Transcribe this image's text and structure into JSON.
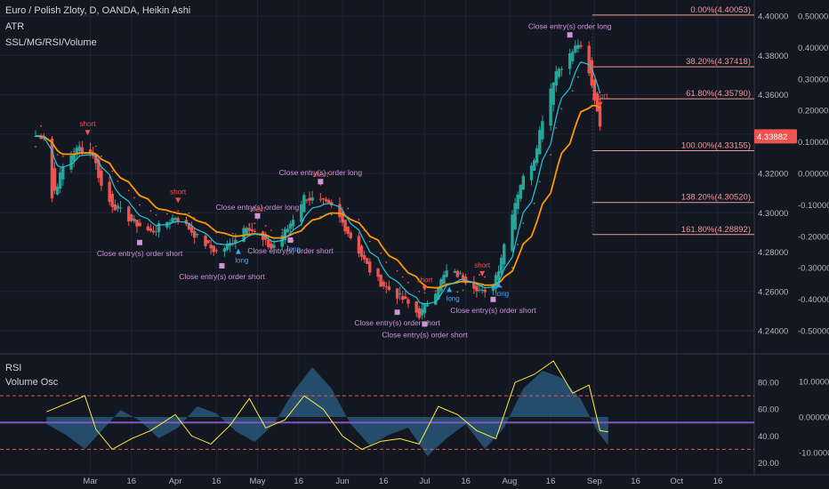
{
  "header": {
    "symbol_line": "Euro / Polish Zloty, D, OANDA, Heikin Ashi",
    "ind1": "ATR",
    "ind2": "SSL/MG/RSI/Volume",
    "rsi_label": "RSI",
    "vol_label": "Volume Osc"
  },
  "colors": {
    "background": "#131722",
    "bull": "#26a69a",
    "bear": "#ef5350",
    "ma_orange": "#ff9800",
    "ma_cyan": "#26c6da",
    "rsi": "#ffeb3b",
    "volume_fill": "#2e5f86",
    "fib": "#ef9a9a",
    "signal": "#ce93d8",
    "midline": "#7e57c2"
  },
  "chart_data": [
    {
      "type": "candlestick",
      "style": "heikin-ashi",
      "title": "Euro / Polish Zloty, D, OANDA, Heikin Ashi",
      "x_ticks": [
        "Mar",
        "16",
        "Apr",
        "16",
        "May",
        "16",
        "Jun",
        "16",
        "Jul",
        "16",
        "Aug",
        "16",
        "Sep",
        "16",
        "Oct",
        "16"
      ],
      "left_axis": {
        "ticks": [
          "4.40000",
          "4.38000",
          "4.36000",
          "4.34000",
          "4.32000",
          "4.30000",
          "4.28000",
          "4.26000",
          "4.24000"
        ],
        "range": [
          4.235,
          4.405
        ]
      },
      "right_axis": {
        "ticks": [
          "0.50000",
          "0.40000",
          "0.30000",
          "0.20000",
          "0.10000",
          "0.00000",
          "-0.10000",
          "-0.20000",
          "-0.30000",
          "-0.40000",
          "-0.50000"
        ]
      },
      "last_price": "4.33882",
      "price_path": [
        {
          "x": "Feb 13",
          "y": 4.3
        },
        {
          "x": "Feb 17",
          "y": 4.315
        },
        {
          "x": "Feb 20",
          "y": 4.327
        },
        {
          "x": "Feb 25",
          "y": 4.333
        },
        {
          "x": "Mar 2",
          "y": 4.33
        },
        {
          "x": "Mar 6",
          "y": 4.308
        },
        {
          "x": "Mar 10",
          "y": 4.303
        },
        {
          "x": "Mar 16",
          "y": 4.296
        },
        {
          "x": "Mar 23",
          "y": 4.29
        },
        {
          "x": "Apr 1",
          "y": 4.298
        },
        {
          "x": "Apr 6",
          "y": 4.292
        },
        {
          "x": "Apr 10",
          "y": 4.286
        },
        {
          "x": "Apr 16",
          "y": 4.28
        },
        {
          "x": "Apr 21",
          "y": 4.284
        },
        {
          "x": "Apr 27",
          "y": 4.294
        },
        {
          "x": "May 1",
          "y": 4.288
        },
        {
          "x": "May 6",
          "y": 4.282
        },
        {
          "x": "May 12",
          "y": 4.292
        },
        {
          "x": "May 18",
          "y": 4.308
        },
        {
          "x": "May 25",
          "y": 4.305
        },
        {
          "x": "May 29",
          "y": 4.302
        },
        {
          "x": "Jun 3",
          "y": 4.29
        },
        {
          "x": "Jun 8",
          "y": 4.278
        },
        {
          "x": "Jun 12",
          "y": 4.268
        },
        {
          "x": "Jun 17",
          "y": 4.262
        },
        {
          "x": "Jun 23",
          "y": 4.256
        },
        {
          "x": "Jun 29",
          "y": 4.248
        },
        {
          "x": "Jul 3",
          "y": 4.256
        },
        {
          "x": "Jul 9",
          "y": 4.27
        },
        {
          "x": "Jul 14",
          "y": 4.268
        },
        {
          "x": "Jul 20",
          "y": 4.262
        },
        {
          "x": "Jul 24",
          "y": 4.257
        },
        {
          "x": "Jul 28",
          "y": 4.272
        },
        {
          "x": "Aug 1",
          "y": 4.296
        },
        {
          "x": "Aug 5",
          "y": 4.315
        },
        {
          "x": "Aug 10",
          "y": 4.328
        },
        {
          "x": "Aug 14",
          "y": 4.355
        },
        {
          "x": "Aug 18",
          "y": 4.372
        },
        {
          "x": "Aug 22",
          "y": 4.378
        },
        {
          "x": "Aug 26",
          "y": 4.386
        },
        {
          "x": "Aug 29",
          "y": 4.376
        },
        {
          "x": "Sep 2",
          "y": 4.352
        },
        {
          "x": "Sep 4",
          "y": 4.339
        }
      ],
      "fibonacci": [
        {
          "label": "0.00%(4.40053)",
          "price": 4.40053
        },
        {
          "label": "38.20%(4.37418)",
          "price": 4.37418
        },
        {
          "label": "61.80%(4.35790)",
          "price": 4.3579
        },
        {
          "label": "100.00%(4.33155)",
          "price": 4.33155
        },
        {
          "label": "138.20%(4.30520)",
          "price": 4.3052
        },
        {
          "label": "161.80%(4.28892)",
          "price": 4.28892
        }
      ],
      "annotations": [
        {
          "text": "short",
          "x": "Feb 28"
        },
        {
          "text": "short",
          "x": "Apr 2"
        },
        {
          "text": "short",
          "x": "May 1"
        },
        {
          "text": "short",
          "x": "May 24"
        },
        {
          "text": "short",
          "x": "Jul 1"
        },
        {
          "text": "short",
          "x": "Jul 22"
        },
        {
          "text": "short",
          "x": "Sep 3"
        },
        {
          "text": "long",
          "x": "Apr 24"
        },
        {
          "text": "long",
          "x": "May 13"
        },
        {
          "text": "long",
          "x": "Jul 10"
        },
        {
          "text": "long",
          "x": "Jul 28"
        },
        {
          "text": "Close entry(s) order short",
          "x": "Mar 19"
        },
        {
          "text": "Close entry(s) order short",
          "x": "Apr 18"
        },
        {
          "text": "Close entry(s) order short",
          "x": "May 13"
        },
        {
          "text": "Close entry(s) order short",
          "x": "Jun 21"
        },
        {
          "text": "Close entry(s) order short",
          "x": "Jul 1"
        },
        {
          "text": "Close entry(s) order short",
          "x": "Jul 26"
        },
        {
          "text": "Close entry(s) order long",
          "x": "May 1"
        },
        {
          "text": "Close entry(s) order long",
          "x": "May 24"
        },
        {
          "text": "Close entry(s) order long",
          "x": "Aug 23"
        }
      ]
    },
    {
      "type": "line",
      "title": "RSI",
      "left_axis": {
        "ticks": [
          "80.00",
          "60.00",
          "40.00",
          "20.00"
        ],
        "range": [
          15,
          100
        ]
      },
      "bands": [
        70,
        30
      ],
      "midline": 50,
      "rsi_values": [
        {
          "x": "Feb 13",
          "y": 58
        },
        {
          "x": "Feb 20",
          "y": 64
        },
        {
          "x": "Feb 27",
          "y": 70
        },
        {
          "x": "Mar 3",
          "y": 45
        },
        {
          "x": "Mar 9",
          "y": 30
        },
        {
          "x": "Mar 16",
          "y": 38
        },
        {
          "x": "Mar 23",
          "y": 44
        },
        {
          "x": "Apr 1",
          "y": 56
        },
        {
          "x": "Apr 7",
          "y": 40
        },
        {
          "x": "Apr 14",
          "y": 34
        },
        {
          "x": "Apr 21",
          "y": 48
        },
        {
          "x": "Apr 28",
          "y": 68
        },
        {
          "x": "May 4",
          "y": 46
        },
        {
          "x": "May 11",
          "y": 52
        },
        {
          "x": "May 18",
          "y": 70
        },
        {
          "x": "May 25",
          "y": 60
        },
        {
          "x": "Jun 1",
          "y": 40
        },
        {
          "x": "Jun 8",
          "y": 30
        },
        {
          "x": "Jun 15",
          "y": 36
        },
        {
          "x": "Jun 22",
          "y": 38
        },
        {
          "x": "Jun 29",
          "y": 34
        },
        {
          "x": "Jul 6",
          "y": 62
        },
        {
          "x": "Jul 13",
          "y": 56
        },
        {
          "x": "Jul 20",
          "y": 44
        },
        {
          "x": "Jul 27",
          "y": 38
        },
        {
          "x": "Aug 3",
          "y": 80
        },
        {
          "x": "Aug 10",
          "y": 86
        },
        {
          "x": "Aug 17",
          "y": 96
        },
        {
          "x": "Aug 24",
          "y": 72
        },
        {
          "x": "Aug 30",
          "y": 78
        },
        {
          "x": "Sep 3",
          "y": 44
        },
        {
          "x": "Sep 6",
          "y": 43
        }
      ]
    },
    {
      "type": "area",
      "title": "Volume Osc",
      "right_axis": {
        "ticks": [
          "10.00000",
          "0.00000",
          "-10.00000"
        ],
        "range": [
          -16,
          16
        ]
      },
      "volume_osc_values": [
        {
          "x": "Feb 13",
          "y": -2
        },
        {
          "x": "Feb 20",
          "y": -5
        },
        {
          "x": "Feb 27",
          "y": -9
        },
        {
          "x": "Mar 5",
          "y": -4
        },
        {
          "x": "Mar 12",
          "y": 2
        },
        {
          "x": "Mar 19",
          "y": -1
        },
        {
          "x": "Mar 26",
          "y": -6
        },
        {
          "x": "Apr 2",
          "y": -3
        },
        {
          "x": "Apr 9",
          "y": 3
        },
        {
          "x": "Apr 16",
          "y": 1
        },
        {
          "x": "Apr 23",
          "y": -4
        },
        {
          "x": "Apr 30",
          "y": -7
        },
        {
          "x": "May 7",
          "y": -2
        },
        {
          "x": "May 14",
          "y": 7
        },
        {
          "x": "May 21",
          "y": 14
        },
        {
          "x": "May 28",
          "y": 8
        },
        {
          "x": "Jun 4",
          "y": -2
        },
        {
          "x": "Jun 11",
          "y": -8
        },
        {
          "x": "Jun 18",
          "y": -5
        },
        {
          "x": "Jun 25",
          "y": -3
        },
        {
          "x": "Jul 2",
          "y": -11
        },
        {
          "x": "Jul 9",
          "y": -6
        },
        {
          "x": "Jul 16",
          "y": -2
        },
        {
          "x": "Jul 23",
          "y": -9
        },
        {
          "x": "Jul 30",
          "y": -3
        },
        {
          "x": "Aug 6",
          "y": 8
        },
        {
          "x": "Aug 13",
          "y": 13
        },
        {
          "x": "Aug 20",
          "y": 11
        },
        {
          "x": "Aug 27",
          "y": 5
        },
        {
          "x": "Sep 2",
          "y": -4
        },
        {
          "x": "Sep 6",
          "y": -8
        }
      ]
    }
  ]
}
